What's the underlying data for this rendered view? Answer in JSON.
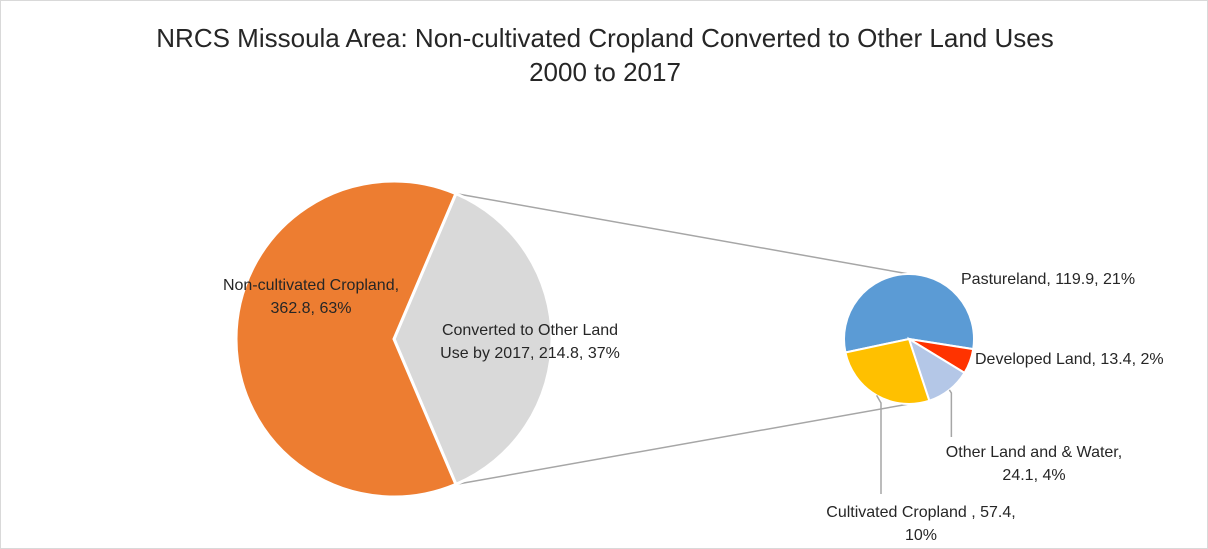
{
  "chart_data": {
    "type": "pie",
    "subtype": "pie-of-pie",
    "title_lines": [
      "NRCS Missoula Area: Non-cultivated Cropland Converted to Other Land Uses",
      "2000 to 2017"
    ],
    "main_pie": {
      "slices": [
        {
          "label_lines": [
            "Converted to Other Land",
            "Use by 2017, 214.8, 37%"
          ],
          "value": 214.8,
          "percent": 37,
          "color": "#d9d9d9"
        },
        {
          "label_lines": [
            "Non-cultivated Cropland,",
            "362.8, 63%"
          ],
          "value": 362.8,
          "percent": 63,
          "color": "#ed7d31"
        }
      ]
    },
    "secondary_pie": {
      "slices": [
        {
          "label_lines": [
            "Pastureland, 119.9, 21%"
          ],
          "value": 119.9,
          "percent": 21,
          "color": "#5b9bd5"
        },
        {
          "label_lines": [
            "Developed Land, 13.4, 2%"
          ],
          "value": 13.4,
          "percent": 2,
          "color": "#ff3300"
        },
        {
          "label_lines": [
            "Other Land and & Water,",
            "24.1, 4%"
          ],
          "value": 24.1,
          "percent": 4,
          "color": "#b4c7e7"
        },
        {
          "label_lines": [
            "Cultivated Cropland , 57.4,",
            "10%"
          ],
          "value": 57.4,
          "percent": 10,
          "color": "#ffc000"
        }
      ]
    },
    "connector_color": "#a6a6a6",
    "legend": "none"
  }
}
